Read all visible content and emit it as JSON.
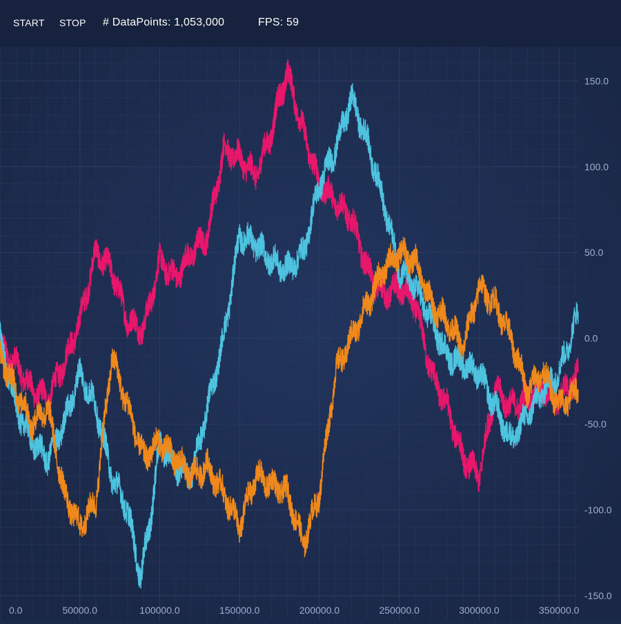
{
  "toolbar": {
    "start_label": "START",
    "stop_label": "STOP",
    "datapoints_label": "# DataPoints: 1,053,000",
    "fps_label": "FPS: 59"
  },
  "colors": {
    "background": "#1c2a4a",
    "toolbar": "#17223e",
    "grid_major": "#2b3b60",
    "grid_minor": "#223154",
    "tick_label": "#9fb0cf",
    "series_pink": "#e8176b",
    "series_cyan": "#4ec3e0",
    "series_orange": "#f0891c"
  },
  "chart_data": {
    "type": "line",
    "title": "",
    "xlabel": "",
    "ylabel": "",
    "xlim": [
      0,
      362000
    ],
    "ylim": [
      -150,
      165
    ],
    "x_ticks": [
      "0.0",
      "50000.0",
      "100000.0",
      "150000.0",
      "200000.0",
      "250000.0",
      "300000.0",
      "350000.0"
    ],
    "x_tick_values": [
      0,
      50000,
      100000,
      150000,
      200000,
      250000,
      300000,
      350000
    ],
    "y_ticks": [
      "150.0",
      "100.0",
      "50.0",
      "0.0",
      "-50.0",
      "-100.0",
      "-150.0"
    ],
    "y_tick_values": [
      150,
      100,
      50,
      0,
      -50,
      -100,
      -150
    ],
    "y_axis_position": "right",
    "grid": true,
    "legend": false,
    "series": [
      {
        "color": "#e8176b",
        "x": [
          0,
          10000,
          20000,
          30000,
          40000,
          50000,
          60000,
          70000,
          80000,
          90000,
          100000,
          110000,
          120000,
          130000,
          140000,
          150000,
          160000,
          170000,
          175000,
          180000,
          190000,
          200000,
          210000,
          220000,
          230000,
          240000,
          250000,
          260000,
          270000,
          280000,
          290000,
          300000,
          310000,
          320000,
          330000,
          340000,
          350000,
          362000
        ],
        "values": [
          -5,
          -15,
          -30,
          -35,
          -15,
          10,
          50,
          40,
          10,
          5,
          45,
          35,
          50,
          60,
          110,
          105,
          95,
          120,
          140,
          155,
          120,
          90,
          80,
          70,
          40,
          25,
          30,
          20,
          -20,
          -40,
          -70,
          -80,
          -30,
          -40,
          -35,
          -30,
          -35,
          -20
        ]
      },
      {
        "color": "#4ec3e0",
        "x": [
          0,
          10000,
          20000,
          30000,
          40000,
          50000,
          60000,
          70000,
          80000,
          88000,
          95000,
          100000,
          110000,
          120000,
          130000,
          140000,
          150000,
          160000,
          170000,
          180000,
          190000,
          200000,
          210000,
          220000,
          230000,
          240000,
          250000,
          260000,
          270000,
          280000,
          290000,
          300000,
          310000,
          320000,
          330000,
          340000,
          350000,
          362000
        ],
        "values": [
          0,
          -40,
          -60,
          -70,
          -50,
          -20,
          -40,
          -80,
          -100,
          -140,
          -100,
          -60,
          -75,
          -80,
          -40,
          0,
          60,
          55,
          45,
          40,
          50,
          90,
          110,
          140,
          115,
          80,
          40,
          30,
          10,
          -10,
          -15,
          -20,
          -40,
          -60,
          -45,
          -30,
          -20,
          15
        ]
      },
      {
        "color": "#f0891c",
        "x": [
          0,
          10000,
          20000,
          30000,
          40000,
          50000,
          60000,
          70000,
          80000,
          90000,
          100000,
          110000,
          120000,
          130000,
          140000,
          150000,
          160000,
          170000,
          180000,
          190000,
          200000,
          210000,
          220000,
          230000,
          240000,
          250000,
          260000,
          270000,
          280000,
          290000,
          300000,
          310000,
          320000,
          330000,
          340000,
          350000,
          362000
        ],
        "values": [
          -10,
          -30,
          -50,
          -40,
          -90,
          -110,
          -95,
          -10,
          -40,
          -70,
          -60,
          -70,
          -80,
          -75,
          -90,
          -110,
          -80,
          -85,
          -90,
          -120,
          -90,
          -20,
          0,
          20,
          40,
          50,
          45,
          20,
          10,
          -5,
          30,
          20,
          0,
          -30,
          -20,
          -40,
          -30
        ]
      }
    ]
  }
}
